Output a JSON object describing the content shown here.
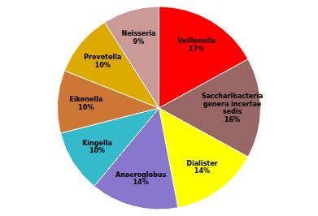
{
  "chart_data": {
    "type": "pie",
    "categories": [
      "Veillonella\n17%",
      "Saccharibacteria\ngenera incertae\nsedis\n16%",
      "Dialister\n14%",
      "Anaeroglobus\n14%",
      "Kingella\n10%",
      "Eikenella\n10%",
      "Prevotella\n10%",
      "Neisseria\n9%"
    ],
    "values": [
      17,
      16,
      14,
      14,
      10,
      10,
      10,
      9
    ],
    "colors": [
      "#ff0000",
      "#996666",
      "#ffff00",
      "#8877cc",
      "#33bbcc",
      "#cc7733",
      "#ddaa00",
      "#cc9999"
    ]
  }
}
